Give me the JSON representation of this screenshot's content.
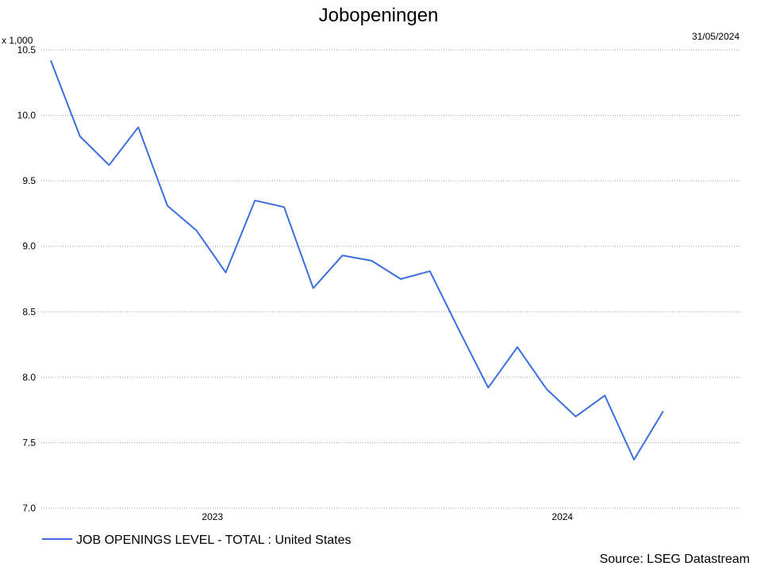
{
  "chart_data": {
    "type": "line",
    "title": "Jobopeningen",
    "unit_label": "x 1,000",
    "date_label": "31/05/2024",
    "source": "Source: LSEG Datastream",
    "categories": [
      null,
      null,
      null,
      null,
      null,
      "2023",
      null,
      null,
      null,
      null,
      null,
      null,
      null,
      null,
      null,
      null,
      null,
      "2024",
      null,
      null,
      null,
      null
    ],
    "series": [
      {
        "name": "JOB OPENINGS LEVEL - TOTAL : United States",
        "color": "#3a6ee0",
        "values": [
          10.42,
          9.84,
          9.62,
          9.91,
          9.31,
          9.12,
          8.8,
          9.35,
          9.3,
          8.68,
          8.93,
          8.89,
          8.75,
          8.81,
          8.36,
          7.92,
          8.23,
          7.91,
          7.7,
          7.86,
          7.37,
          7.74
        ]
      }
    ],
    "ylim": [
      7,
      10.5
    ],
    "yticks": [
      {
        "value": 7,
        "label": "7.0"
      },
      7.5,
      {
        "value": 8,
        "label": "8.0"
      },
      8.5,
      {
        "value": 9,
        "label": "9.0"
      },
      9.5,
      {
        "value": 10,
        "label": "10.0"
      },
      10.5
    ],
    "grid": true
  }
}
